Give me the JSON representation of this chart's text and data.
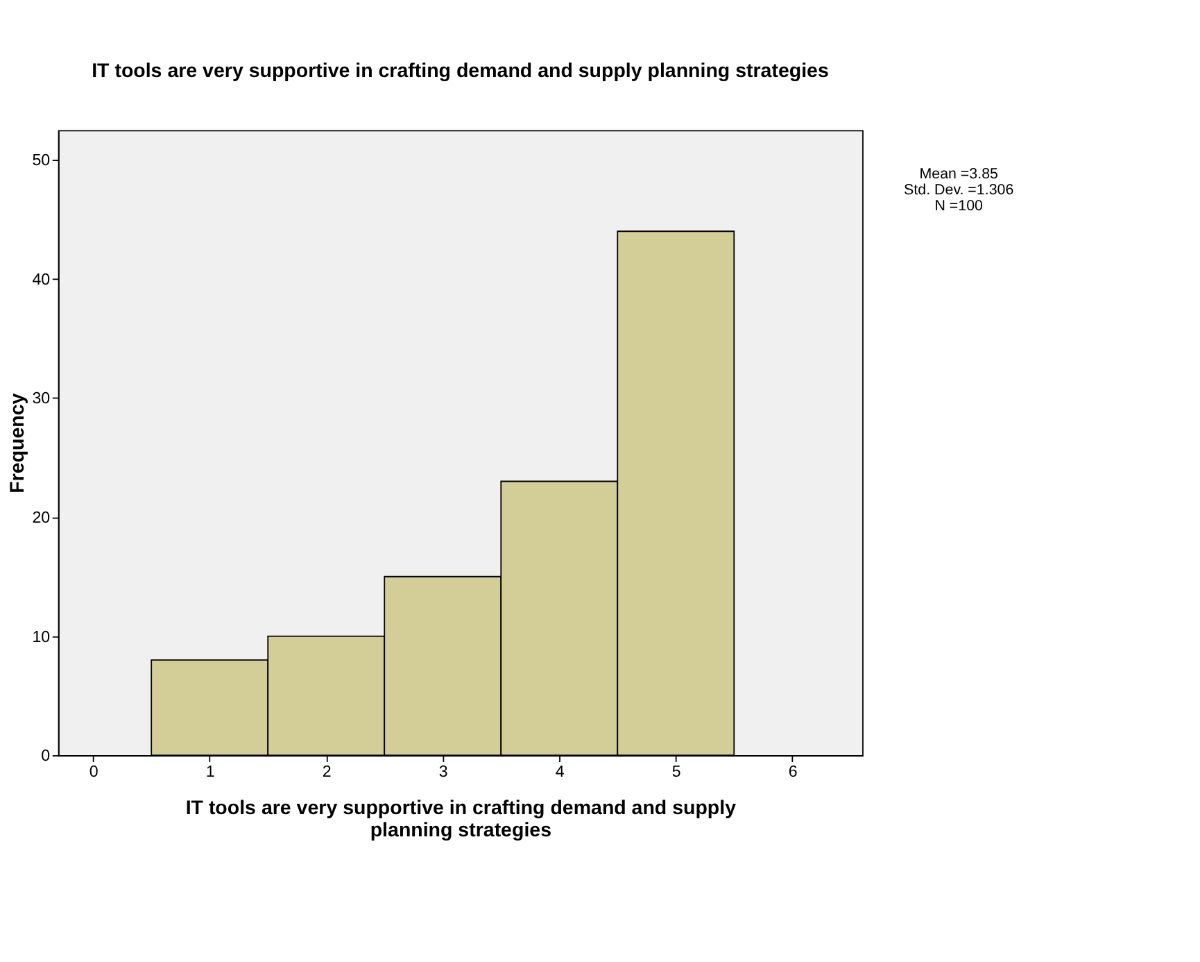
{
  "chart_data": {
    "type": "histogram",
    "title": "IT tools are very supportive in crafting demand and supply planning strategies",
    "xlabel": "IT tools are very supportive in crafting demand and supply planning strategies",
    "ylabel": "Frequency",
    "bins": [
      0.5,
      1.5,
      2.5,
      3.5,
      4.5,
      5.5
    ],
    "values": [
      8,
      10,
      15,
      23,
      44
    ],
    "color": "#d3ce97",
    "xlim": [
      -0.3,
      6.6
    ],
    "xticks": [
      0,
      1,
      2,
      3,
      4,
      5,
      6
    ],
    "ylim": [
      0,
      52.5
    ],
    "yticks": [
      0,
      10,
      20,
      30,
      40,
      50
    ],
    "grid": false,
    "annotations": [
      "Mean =3.85",
      "Std. Dev. =1.306",
      "N =100"
    ]
  }
}
